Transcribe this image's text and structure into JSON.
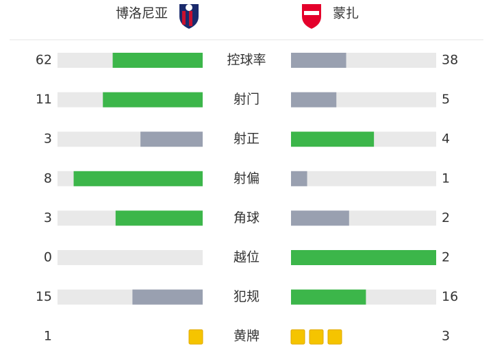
{
  "teams": {
    "home": "博洛尼亚",
    "away": "蒙扎"
  },
  "colors": {
    "leader": "#3cb64a",
    "trailer": "#99a0b0",
    "track": "#e9e9e9",
    "card": "#f5c400"
  },
  "stats": [
    {
      "label": "控球率",
      "home": 62,
      "away": 38
    },
    {
      "label": "射门",
      "home": 11,
      "away": 5
    },
    {
      "label": "射正",
      "home": 3,
      "away": 4
    },
    {
      "label": "射偏",
      "home": 8,
      "away": 1
    },
    {
      "label": "角球",
      "home": 3,
      "away": 2
    },
    {
      "label": "越位",
      "home": 0,
      "away": 2
    },
    {
      "label": "犯规",
      "home": 15,
      "away": 16
    },
    {
      "label": "黄牌",
      "home": 1,
      "away": 3,
      "display": "cards"
    }
  ]
}
